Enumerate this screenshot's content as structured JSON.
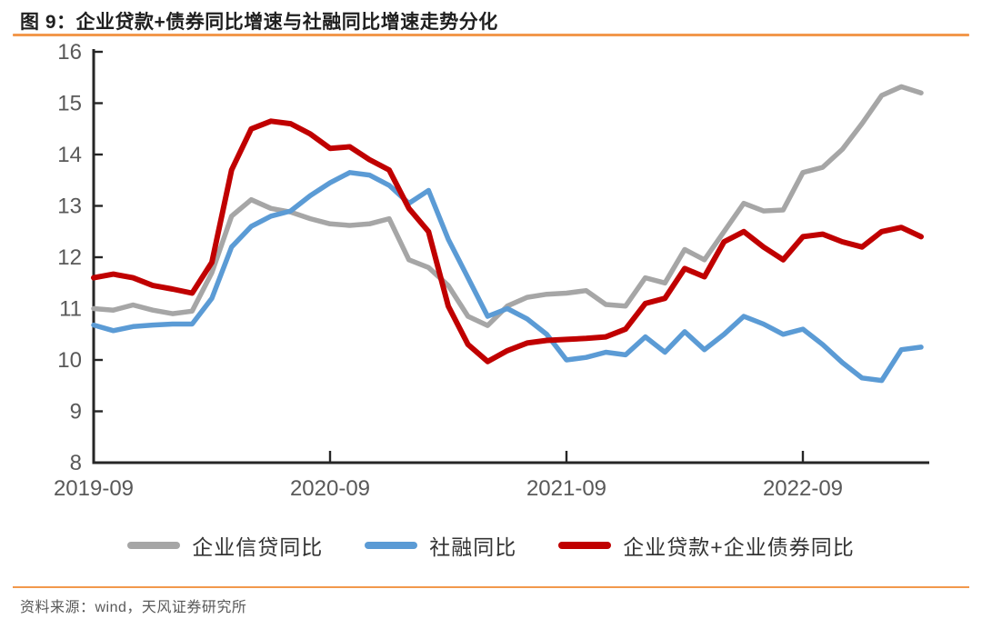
{
  "header": {
    "title": "图 9：企业贷款+债券同比增速与社融同比增速走势分化"
  },
  "footer": {
    "source": "资料来源：wind，天风证券研究所"
  },
  "colors": {
    "accent_orange": "#F2984C",
    "axis": "#262626",
    "tick_label": "#595959",
    "legend_text": "#333333",
    "series_gray": "#A6A6A6",
    "series_blue": "#5B9BD5",
    "series_red": "#C00000"
  },
  "chart_data": {
    "type": "line",
    "title": "图 9：企业贷款+债券同比增速与社融同比增速走势分化",
    "xlabel": "",
    "ylabel": "",
    "ylim": [
      8,
      16
    ],
    "y_ticks": [
      8,
      9,
      10,
      11,
      12,
      13,
      14,
      15,
      16
    ],
    "grid": false,
    "legend_position": "bottom",
    "x": [
      "2019-09",
      "2019-10",
      "2019-11",
      "2019-12",
      "2020-01",
      "2020-02",
      "2020-03",
      "2020-04",
      "2020-05",
      "2020-06",
      "2020-07",
      "2020-08",
      "2020-09",
      "2020-10",
      "2020-11",
      "2020-12",
      "2021-01",
      "2021-02",
      "2021-03",
      "2021-04",
      "2021-05",
      "2021-06",
      "2021-07",
      "2021-08",
      "2021-09",
      "2021-10",
      "2021-11",
      "2021-12",
      "2022-01",
      "2022-02",
      "2022-03",
      "2022-04",
      "2022-05",
      "2022-06",
      "2022-07",
      "2022-08",
      "2022-09",
      "2022-10",
      "2022-11",
      "2022-12",
      "2023-01",
      "2023-02",
      "2023-03"
    ],
    "x_tick_labels": [
      "2019-09",
      "2020-09",
      "2021-09",
      "2022-09"
    ],
    "x_tick_indices": [
      0,
      12,
      24,
      36
    ],
    "series": [
      {
        "name": "企业信贷同比",
        "color": "#A6A6A6",
        "width": 5.5,
        "values": [
          11.0,
          10.97,
          11.07,
          10.97,
          10.9,
          10.95,
          11.7,
          12.8,
          13.12,
          12.95,
          12.88,
          12.75,
          12.65,
          12.62,
          12.65,
          12.75,
          11.95,
          11.8,
          11.45,
          10.85,
          10.67,
          11.05,
          11.22,
          11.28,
          11.3,
          11.35,
          11.08,
          11.05,
          11.6,
          11.5,
          12.15,
          11.95,
          12.5,
          13.05,
          12.9,
          12.92,
          13.65,
          13.75,
          14.1,
          14.6,
          15.15,
          15.32,
          15.2
        ]
      },
      {
        "name": "社融同比",
        "color": "#5B9BD5",
        "width": 5.5,
        "values": [
          10.68,
          10.57,
          10.65,
          10.68,
          10.7,
          10.7,
          11.2,
          12.2,
          12.6,
          12.8,
          12.9,
          13.2,
          13.45,
          13.65,
          13.6,
          13.4,
          13.05,
          13.3,
          12.35,
          11.6,
          10.85,
          11.0,
          10.8,
          10.5,
          10.0,
          10.05,
          10.15,
          10.1,
          10.45,
          10.15,
          10.55,
          10.2,
          10.5,
          10.85,
          10.7,
          10.5,
          10.6,
          10.3,
          9.95,
          9.65,
          9.6,
          10.2,
          10.25
        ]
      },
      {
        "name": "企业贷款+企业债券同比",
        "color": "#C00000",
        "width": 6,
        "values": [
          11.6,
          11.67,
          11.6,
          11.45,
          11.38,
          11.3,
          11.9,
          13.7,
          14.5,
          14.65,
          14.6,
          14.4,
          14.12,
          14.15,
          13.9,
          13.7,
          12.95,
          12.5,
          11.05,
          10.3,
          9.97,
          10.18,
          10.33,
          10.38,
          10.4,
          10.42,
          10.45,
          10.6,
          11.1,
          11.2,
          11.78,
          11.62,
          12.3,
          12.5,
          12.2,
          11.95,
          12.4,
          12.45,
          12.3,
          12.2,
          12.5,
          12.58,
          12.4
        ]
      }
    ]
  }
}
